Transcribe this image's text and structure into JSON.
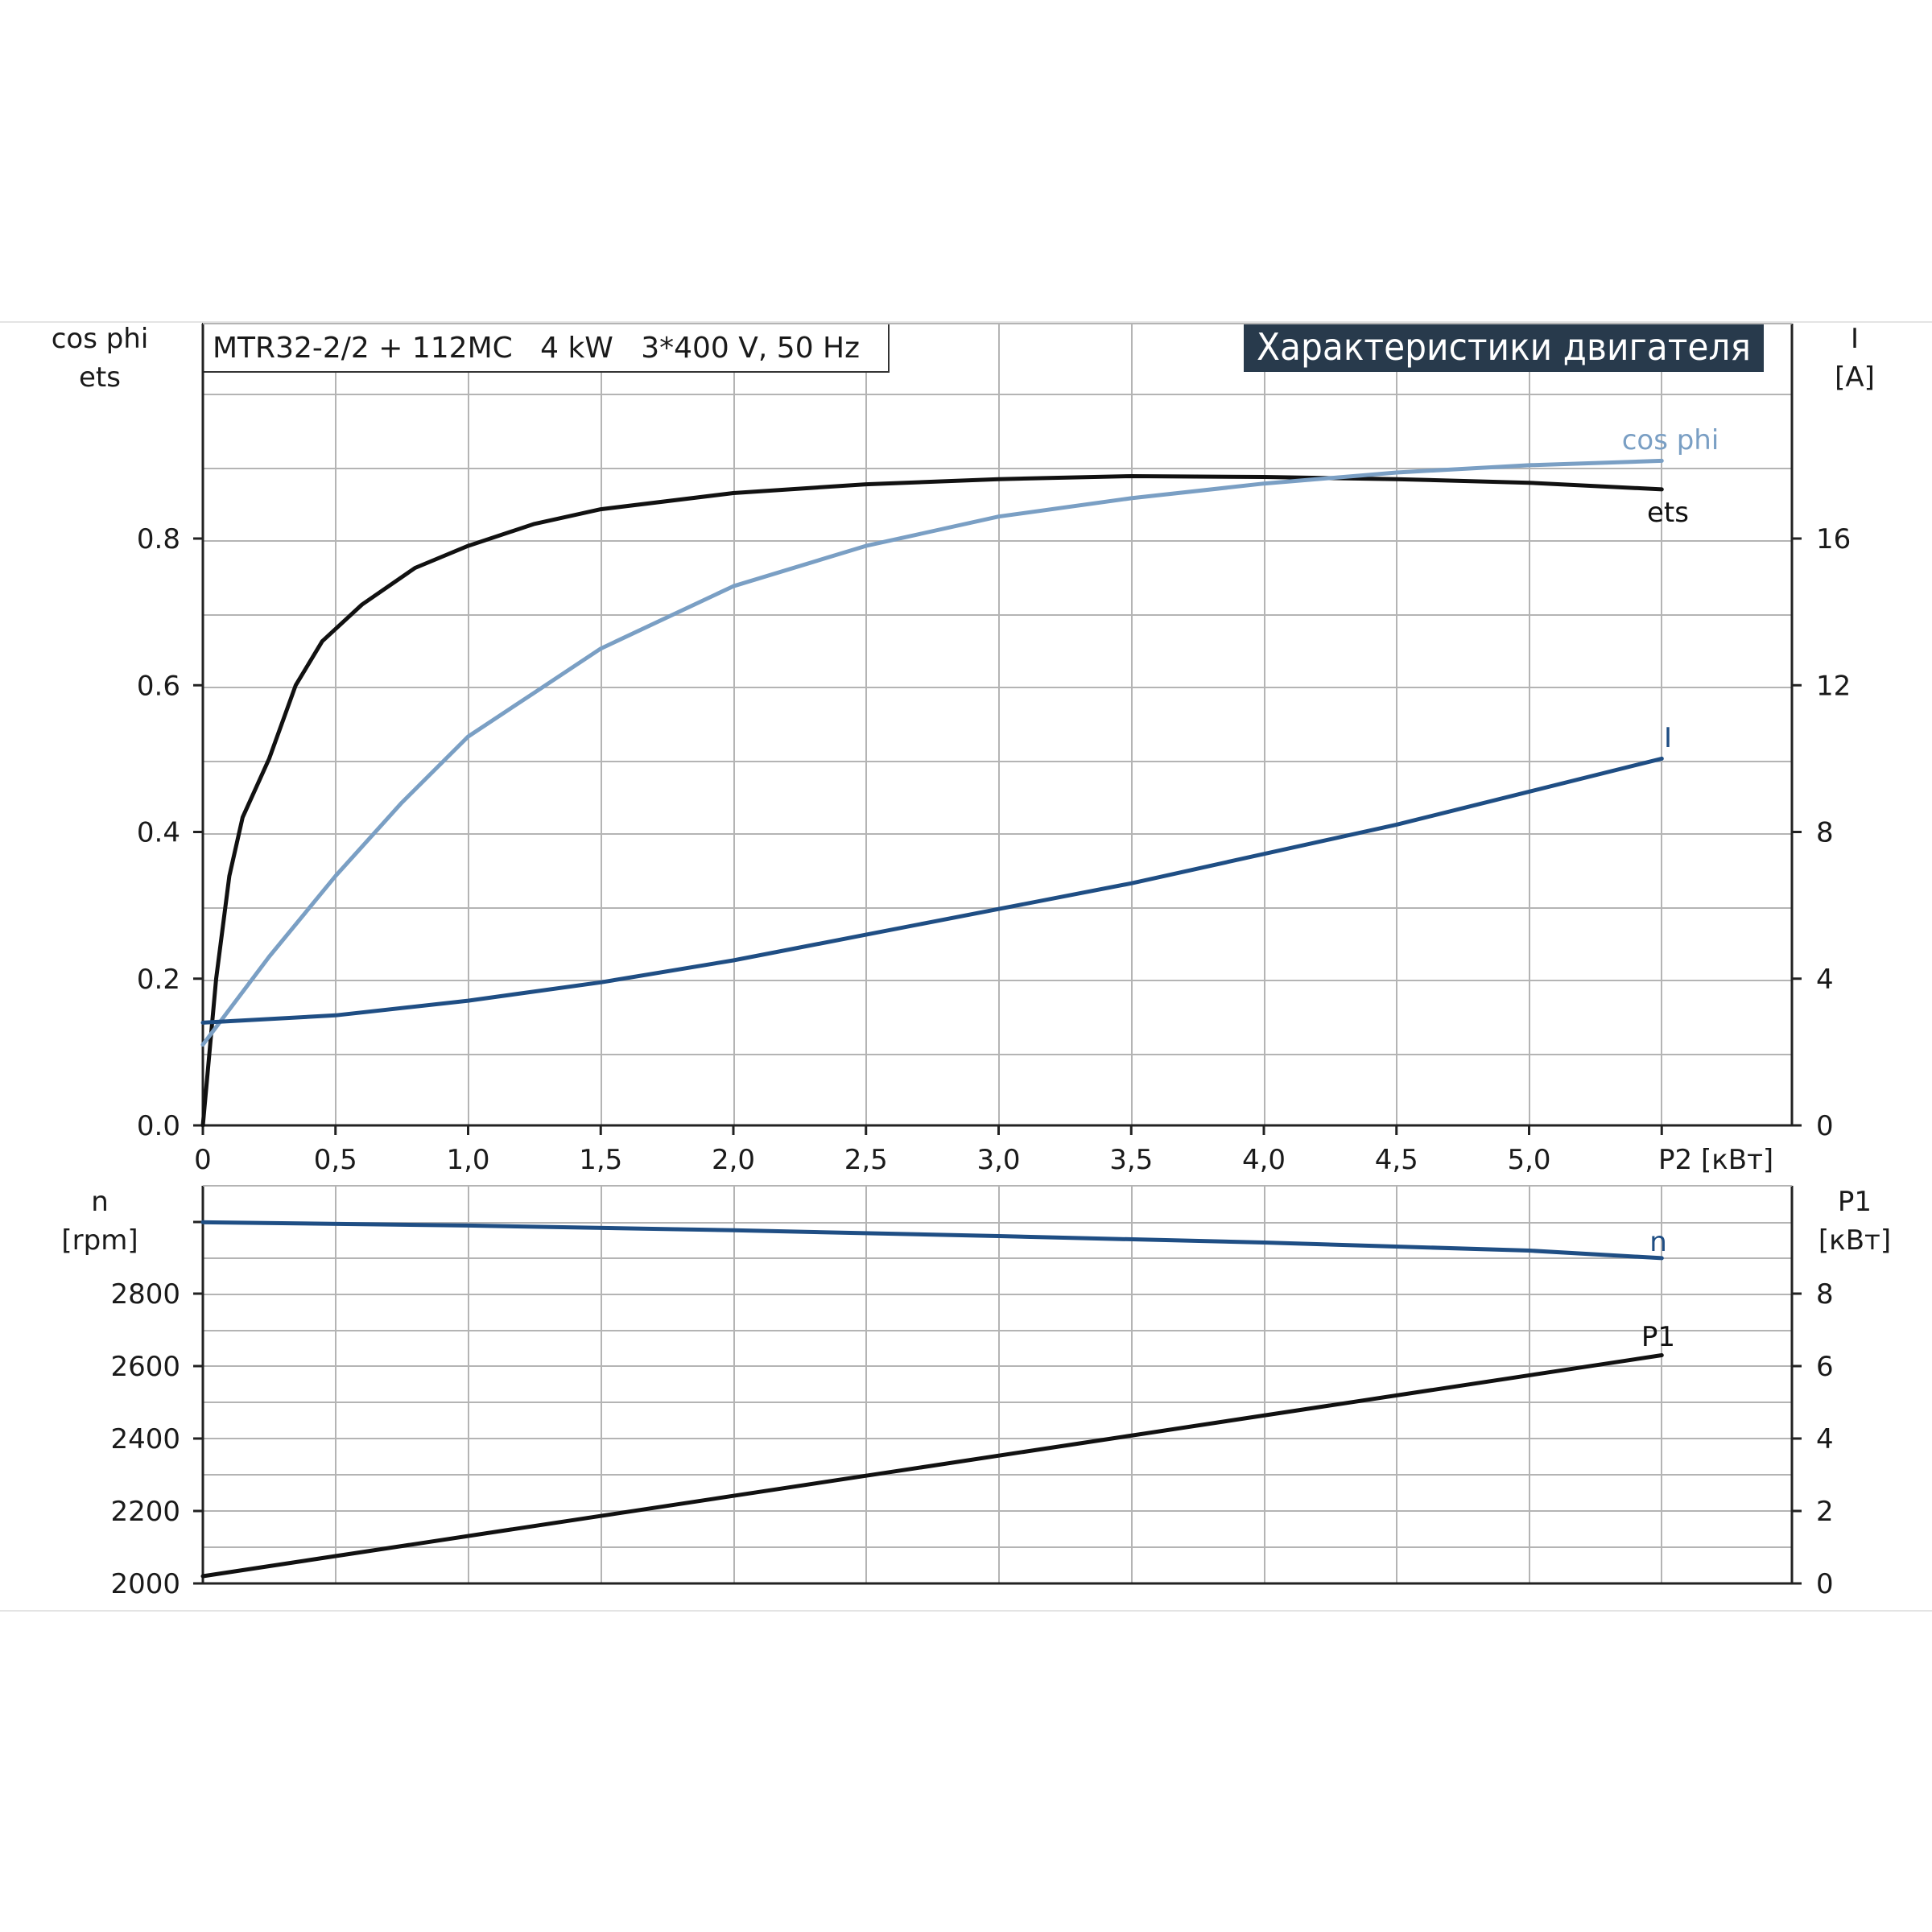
{
  "header": {
    "model": "MTR32-2/2 + 112MC   4 kW   3*400 V, 50 Hz",
    "badge": "Характеристики двигателя"
  },
  "colors": {
    "ets": "#111111",
    "cos_phi": "#7a9fc4",
    "current": "#1f4e84",
    "n": "#1f4e84",
    "p1": "#111111",
    "grid": "#b4b4b4",
    "badge_bg": "#283a4c"
  },
  "chart_data": [
    {
      "type": "line",
      "id": "upper",
      "xlabel": "P2 [кВт]",
      "xlim": [
        0,
        6
      ],
      "x_ticks": [
        0,
        0.5,
        1.0,
        1.5,
        2.0,
        2.5,
        3.0,
        3.5,
        4.0,
        4.5,
        5.0
      ],
      "x_tick_labels": [
        "0",
        "0,5",
        "1,0",
        "1,5",
        "2,0",
        "2,5",
        "3,0",
        "3,5",
        "4,0",
        "4,5",
        "5,0"
      ],
      "y_left": {
        "label_lines": [
          "cos phi",
          "ets"
        ],
        "lim": [
          0,
          1.0
        ],
        "ticks": [
          0.0,
          0.2,
          0.4,
          0.6,
          0.8
        ],
        "tick_labels": [
          "0.0",
          "0.2",
          "0.4",
          "0.6",
          "0.8"
        ]
      },
      "y_right": {
        "label_lines": [
          "I",
          "[A]"
        ],
        "lim": [
          0,
          20
        ],
        "ticks": [
          0,
          4,
          8,
          12,
          16
        ],
        "tick_labels": [
          "0",
          "4",
          "8",
          "12",
          "16"
        ]
      },
      "grid": true,
      "series": [
        {
          "name": "ets",
          "axis": "left",
          "x": [
            0,
            0.05,
            0.1,
            0.15,
            0.25,
            0.35,
            0.45,
            0.6,
            0.8,
            1.0,
            1.25,
            1.5,
            2.0,
            2.5,
            3.0,
            3.5,
            4.0,
            4.5,
            5.0,
            5.5
          ],
          "y": [
            0.0,
            0.2,
            0.34,
            0.42,
            0.5,
            0.6,
            0.66,
            0.71,
            0.76,
            0.79,
            0.82,
            0.84,
            0.862,
            0.874,
            0.881,
            0.885,
            0.884,
            0.881,
            0.876,
            0.867
          ]
        },
        {
          "name": "cos phi",
          "axis": "left",
          "x": [
            0,
            0.25,
            0.5,
            0.75,
            1.0,
            1.25,
            1.5,
            2.0,
            2.5,
            3.0,
            3.5,
            4.0,
            4.5,
            5.0,
            5.5
          ],
          "y": [
            0.11,
            0.23,
            0.34,
            0.44,
            0.53,
            0.59,
            0.65,
            0.735,
            0.79,
            0.83,
            0.855,
            0.875,
            0.89,
            0.9,
            0.906
          ]
        },
        {
          "name": "I",
          "axis": "right",
          "x": [
            0,
            0.5,
            1.0,
            1.5,
            2.0,
            2.5,
            3.0,
            3.5,
            4.0,
            4.5,
            5.0,
            5.5
          ],
          "y": [
            2.8,
            3.0,
            3.4,
            3.9,
            4.5,
            5.2,
            5.9,
            6.6,
            7.4,
            8.2,
            9.1,
            10.0
          ]
        }
      ]
    },
    {
      "type": "line",
      "id": "lower",
      "xlim": [
        0,
        6
      ],
      "y_left": {
        "label_lines": [
          "n",
          "[rpm]"
        ],
        "lim": [
          2000,
          3000
        ],
        "ticks": [
          2000,
          2200,
          2400,
          2600,
          2800
        ],
        "tick_labels": [
          "2000",
          "2200",
          "2400",
          "2600",
          "2800"
        ]
      },
      "y_right": {
        "label_lines": [
          "P1",
          "[кВт]"
        ],
        "lim": [
          0,
          10
        ],
        "ticks": [
          0,
          2,
          4,
          6,
          8
        ],
        "tick_labels": [
          "0",
          "2",
          "4",
          "6",
          "8"
        ]
      },
      "grid": true,
      "series": [
        {
          "name": "n",
          "axis": "left",
          "x": [
            0,
            1.0,
            2.0,
            3.0,
            4.0,
            5.0,
            5.5
          ],
          "y": [
            2997,
            2988,
            2975,
            2959,
            2941,
            2919,
            2898
          ]
        },
        {
          "name": "P1",
          "axis": "right",
          "x": [
            0,
            5.5
          ],
          "y": [
            0.2,
            6.3
          ]
        }
      ]
    }
  ]
}
